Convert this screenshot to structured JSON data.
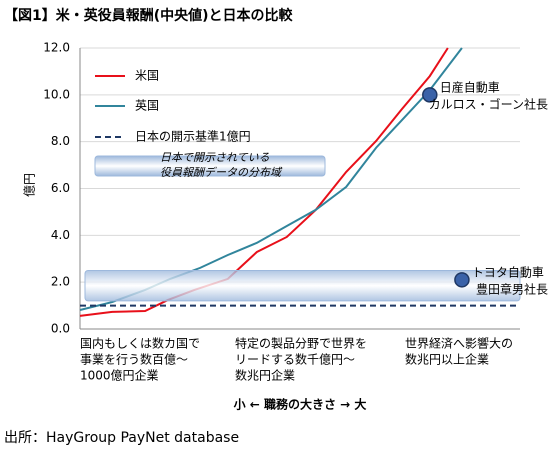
{
  "source": "出所：HayGroup PayNet database",
  "chart_data": {
    "type": "line",
    "title": "【図1】米・英役員報酬(中央値)と日本の比較",
    "y_label": "億円",
    "x_label": "小 ← 職務の大きさ → 大",
    "xlim": [
      0,
      100
    ],
    "ylim": [
      0,
      12
    ],
    "yticks": [
      {
        "value": 0,
        "label": "0.0"
      },
      {
        "value": 2,
        "label": "2.0"
      },
      {
        "value": 4,
        "label": "4.0"
      },
      {
        "value": 6,
        "label": "6.0"
      },
      {
        "value": 8,
        "label": "8.0"
      },
      {
        "value": 10,
        "label": "10.0"
      },
      {
        "value": 12,
        "label": "12.0"
      }
    ],
    "grid": true,
    "categories": [
      [
        "国内もしくは数カ国で",
        "事業を行う数百億～",
        "1000億円企業"
      ],
      [
        "特定の製品分野で世界を",
        "リードする数千億円～",
        "数兆円企業"
      ],
      [
        "世界経済へ影響大の",
        "数兆円以上企業"
      ]
    ],
    "series": [
      {
        "name": "米国",
        "color": "#e8101a",
        "x": [
          0,
          7.3,
          14.8,
          20,
          26,
          33.6,
          40.2,
          47,
          53.6,
          60.5,
          67.3,
          73.2,
          79.5,
          83.6
        ],
        "values": [
          0.56,
          0.73,
          0.77,
          1.24,
          1.67,
          2.14,
          3.29,
          3.93,
          5.09,
          6.71,
          8.03,
          9.4,
          10.8,
          12.0
        ]
      },
      {
        "name": "英国",
        "color": "#31859c",
        "x": [
          0,
          7.3,
          14.8,
          20.5,
          27.3,
          33.6,
          40.2,
          47,
          53.6,
          60.5,
          67.3,
          73.2,
          79.5,
          86.8
        ],
        "values": [
          0.81,
          1.15,
          1.67,
          2.14,
          2.61,
          3.16,
          3.68,
          4.4,
          5.09,
          6.07,
          7.74,
          8.93,
          10.2,
          12.0
        ]
      }
    ],
    "reference_line": {
      "name": "日本の開示基準1億円",
      "color": "#1f3864",
      "value": 1.0
    },
    "band": {
      "name": [
        "日本で開示されている",
        "役員報酬データの分布域"
      ],
      "color": "#9db8dc",
      "range": [
        1.2,
        2.5
      ]
    },
    "annotations": [
      {
        "label": [
          "日産自動車",
          "カルロス・ゴーン社長"
        ],
        "x": 79.5,
        "y": 10.0,
        "color": "#3a62a8"
      },
      {
        "label": [
          "トヨタ自動車",
          "豊田章男社長"
        ],
        "x": 86.8,
        "y": 2.1,
        "color": "#3a62a8"
      }
    ]
  }
}
